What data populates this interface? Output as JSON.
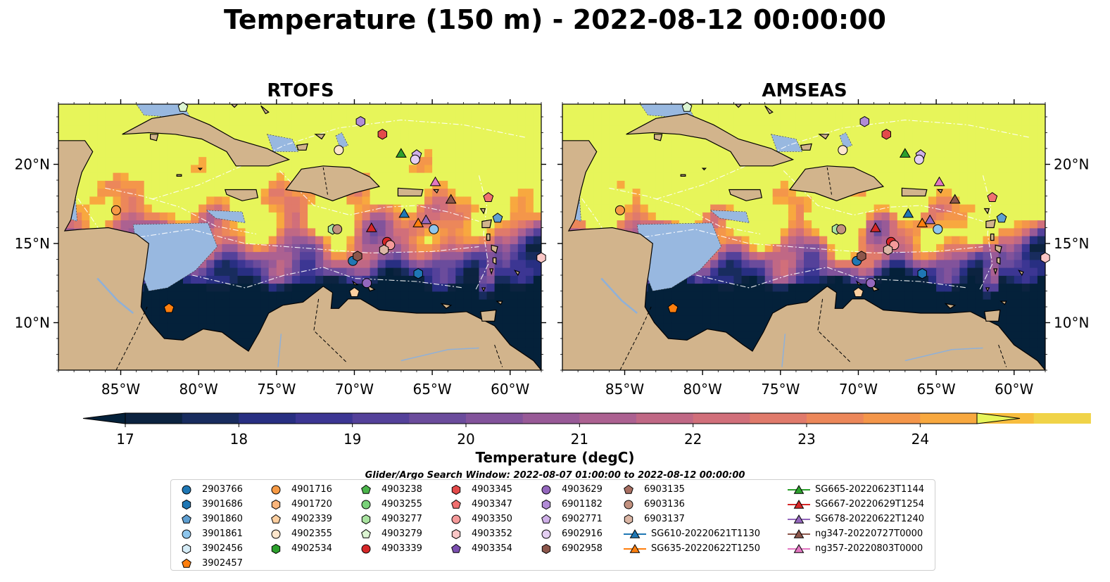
{
  "title": "Temperature (150 m) - 2022-08-12 00:00:00",
  "panels": [
    {
      "title": "RTOFS",
      "warm_scale": 1.0
    },
    {
      "title": "AMSEAS",
      "warm_scale": 1.22
    }
  ],
  "colors": {
    "ocean": "#98b8e0",
    "land": "#d2b48c",
    "coast": "#000000"
  },
  "chart_data": {
    "type": "heatmap",
    "title": "Temperature (150 m) - 2022-08-12 00:00:00",
    "variable": "Temperature (degC)",
    "x_ticks": [
      {
        "value": -85,
        "label": "85°W"
      },
      {
        "value": -80,
        "label": "80°W"
      },
      {
        "value": -75,
        "label": "75°W"
      },
      {
        "value": -70,
        "label": "70°W"
      },
      {
        "value": -65,
        "label": "65°W"
      },
      {
        "value": -60,
        "label": "60°W"
      }
    ],
    "y_ticks": [
      {
        "value": 10,
        "label": "10°N"
      },
      {
        "value": 15,
        "label": "15°N"
      },
      {
        "value": 20,
        "label": "20°N"
      }
    ],
    "xlim": [
      -89,
      -58
    ],
    "ylim": [
      7,
      23.8
    ],
    "colorbar": {
      "label": "Temperature (degC)",
      "min": 17,
      "max": 24.5,
      "step": 0.5,
      "ticks": [
        17,
        18,
        19,
        20,
        21,
        22,
        23,
        24
      ],
      "colors": [
        "#0c2340",
        "#182c5e",
        "#282f82",
        "#3c3693",
        "#54419a",
        "#6b4c9c",
        "#82539b",
        "#985a97",
        "#ac6191",
        "#c06885",
        "#d16f7a",
        "#e07a6b",
        "#ec875a",
        "#f4964a",
        "#f8a83f",
        "#f7bd3e",
        "#f0d348"
      ],
      "extend_low": "#04213a",
      "extend_high": "#e7f55a"
    },
    "search_window": "Glider/Argo Search Window: 2022-08-07 01:00:00 to 2022-08-12 00:00:00",
    "legend": [
      {
        "label": "2903766",
        "marker": "circle",
        "color": "#1f77b4"
      },
      {
        "label": "3901686",
        "marker": "hexagon",
        "color": "#1f77b4"
      },
      {
        "label": "3901860",
        "marker": "pentagon",
        "color": "#5f9fd1"
      },
      {
        "label": "3901861",
        "marker": "circle",
        "color": "#8ec6ed"
      },
      {
        "label": "3902456",
        "marker": "hexagon",
        "color": "#d5ecf7"
      },
      {
        "label": "3902457",
        "marker": "pentagon",
        "color": "#ff7f0e"
      },
      {
        "label": "4901716",
        "marker": "circle",
        "color": "#f79a45"
      },
      {
        "label": "4901720",
        "marker": "hexagon",
        "color": "#fbb57b"
      },
      {
        "label": "4902339",
        "marker": "pentagon",
        "color": "#fdcfa0"
      },
      {
        "label": "4902355",
        "marker": "circle",
        "color": "#fee6cc"
      },
      {
        "label": "4902534",
        "marker": "hexagon",
        "color": "#2ca02c"
      },
      {
        "label": "4903238",
        "marker": "pentagon",
        "color": "#4bb54b"
      },
      {
        "label": "4903255",
        "marker": "circle",
        "color": "#79d179"
      },
      {
        "label": "4903277",
        "marker": "hexagon",
        "color": "#a9e3a0"
      },
      {
        "label": "4903279",
        "marker": "pentagon",
        "color": "#dcf5d2"
      },
      {
        "label": "4903339",
        "marker": "circle",
        "color": "#d62728"
      },
      {
        "label": "4903345",
        "marker": "hexagon",
        "color": "#e34a4a"
      },
      {
        "label": "4903347",
        "marker": "pentagon",
        "color": "#f07070"
      },
      {
        "label": "4903350",
        "marker": "circle",
        "color": "#f59a9a"
      },
      {
        "label": "4903352",
        "marker": "hexagon",
        "color": "#fac6c6"
      },
      {
        "label": "4903354",
        "marker": "pentagon",
        "color": "#7b4fb0"
      },
      {
        "label": "4903629",
        "marker": "circle",
        "color": "#9467bd"
      },
      {
        "label": "6901182",
        "marker": "hexagon",
        "color": "#b18bd6"
      },
      {
        "label": "6902771",
        "marker": "pentagon",
        "color": "#cfb0e8"
      },
      {
        "label": "6902916",
        "marker": "circle",
        "color": "#e4cff2"
      },
      {
        "label": "6902958",
        "marker": "hexagon",
        "color": "#8c564b"
      },
      {
        "label": "6903135",
        "marker": "pentagon",
        "color": "#a86f62"
      },
      {
        "label": "6903136",
        "marker": "circle",
        "color": "#c2917f"
      },
      {
        "label": "6903137",
        "marker": "hexagon",
        "color": "#dbb6a5"
      },
      {
        "label": "SG610-20220621T1130",
        "marker": "triangle-line",
        "color": "#1f77b4"
      },
      {
        "label": "SG635-20220622T1250",
        "marker": "triangle-line",
        "color": "#ff7f0e"
      },
      {
        "label": "SG665-20220623T1144",
        "marker": "triangle-line",
        "color": "#2ca02c"
      },
      {
        "label": "SG667-20220629T1254",
        "marker": "triangle-line",
        "color": "#d62728"
      },
      {
        "label": "SG678-20220622T1240",
        "marker": "triangle-line",
        "color": "#9467bd"
      },
      {
        "label": "ng347-20220727T0000",
        "marker": "triangle-line",
        "color": "#8c564b"
      },
      {
        "label": "ng357-20220803T0000",
        "marker": "triangle-line",
        "color": "#e377c2"
      }
    ],
    "observations": [
      {
        "id": "4901716",
        "lon": -85.3,
        "lat": 17.1
      },
      {
        "id": "3902457",
        "lon": -81.9,
        "lat": 10.9
      },
      {
        "id": "4903279",
        "lon": -81.0,
        "lat": 23.6
      },
      {
        "id": "4902355",
        "lon": -71.0,
        "lat": 20.9
      },
      {
        "id": "6901182",
        "lon": -69.6,
        "lat": 22.7
      },
      {
        "id": "4903345",
        "lon": -68.2,
        "lat": 21.9
      },
      {
        "id": "6902771",
        "lon": -66.0,
        "lat": 20.6
      },
      {
        "id": "6902916",
        "lon": -66.1,
        "lat": 20.3
      },
      {
        "id": "SG665-20220623T1144",
        "lon": -67.0,
        "lat": 20.7
      },
      {
        "id": "ng357-20220803T0000",
        "lon": -64.8,
        "lat": 18.9
      },
      {
        "id": "ng347-20220727T0000",
        "lon": -63.8,
        "lat": 17.8
      },
      {
        "id": "4903347",
        "lon": -61.4,
        "lat": 17.9
      },
      {
        "id": "3901860",
        "lon": -60.8,
        "lat": 16.6
      },
      {
        "id": "SG610-20220621T1130",
        "lon": -66.8,
        "lat": 16.9
      },
      {
        "id": "SG678-20220622T1240",
        "lon": -65.4,
        "lat": 16.5
      },
      {
        "id": "SG635-20220622T1250",
        "lon": -65.9,
        "lat": 16.3
      },
      {
        "id": "3901861",
        "lon": -64.9,
        "lat": 15.9
      },
      {
        "id": "SG667-20220629T1254",
        "lon": -68.9,
        "lat": 16.0
      },
      {
        "id": "4903277",
        "lon": -71.4,
        "lat": 15.9
      },
      {
        "id": "6903136",
        "lon": -71.1,
        "lat": 15.9
      },
      {
        "id": "4903339",
        "lon": -67.9,
        "lat": 15.1
      },
      {
        "id": "4903350",
        "lon": -67.7,
        "lat": 14.9
      },
      {
        "id": "6903137",
        "lon": -68.1,
        "lat": 14.6
      },
      {
        "id": "2903766",
        "lon": -70.1,
        "lat": 13.9
      },
      {
        "id": "6902958",
        "lon": -69.8,
        "lat": 14.2
      },
      {
        "id": "4903629",
        "lon": -69.2,
        "lat": 12.5
      },
      {
        "id": "3901686",
        "lon": -65.9,
        "lat": 13.1
      },
      {
        "id": "4902339",
        "lon": -70.0,
        "lat": 11.9
      },
      {
        "id": "4903352",
        "lon": -58.0,
        "lat": 14.1
      }
    ]
  }
}
